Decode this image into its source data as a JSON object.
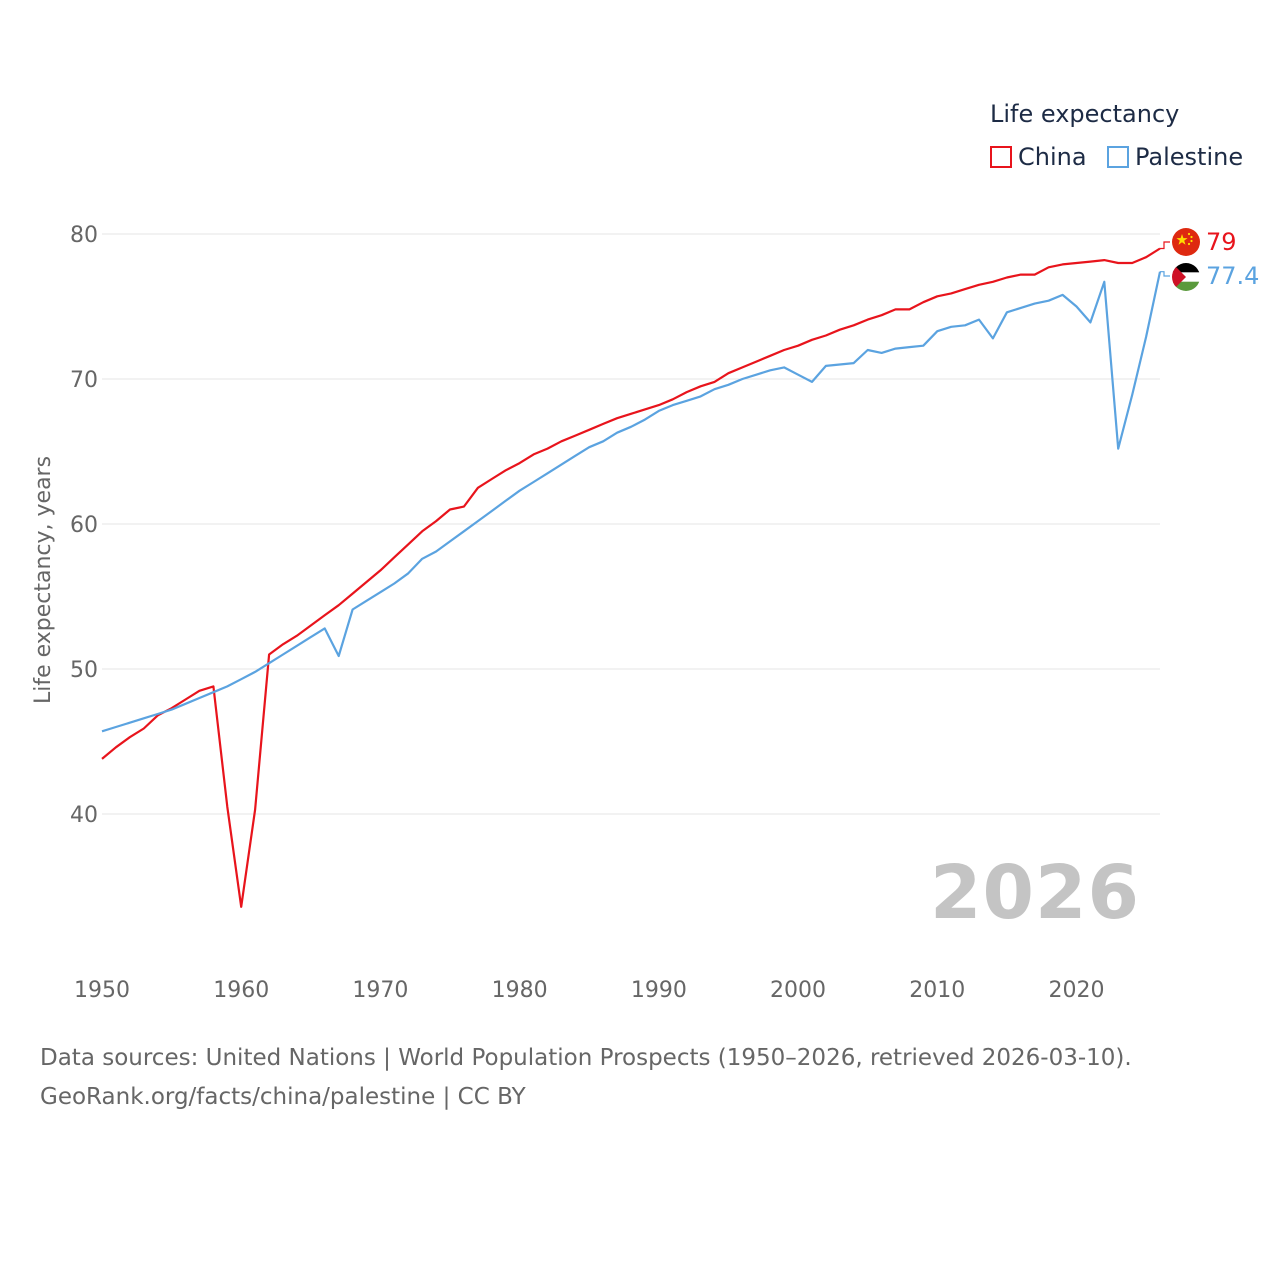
{
  "legend": {
    "title": "Life expectancy",
    "items": [
      {
        "name": "China",
        "color": "#e8141c"
      },
      {
        "name": "Palestine",
        "color": "#5ba3e0"
      }
    ]
  },
  "watermark_year": "2026",
  "source": {
    "line1": "Data sources: United Nations | World Population Prospects (1950–2026, retrieved 2026-03-10).",
    "line2": "GeoRank.org/facts/china/palestine | CC BY"
  },
  "chart_data": {
    "type": "line",
    "title": "Life expectancy",
    "xlabel": "",
    "ylabel": "Life expectancy, years",
    "xlim": [
      1950,
      2026
    ],
    "ylim": [
      32,
      83
    ],
    "x_ticks": [
      1950,
      1960,
      1970,
      1980,
      1990,
      2000,
      2010,
      2020
    ],
    "y_ticks": [
      40,
      50,
      60,
      70,
      80
    ],
    "grid": true,
    "legend_position": "top-right",
    "x": [
      1950,
      1951,
      1952,
      1953,
      1954,
      1955,
      1956,
      1957,
      1958,
      1959,
      1960,
      1961,
      1962,
      1963,
      1964,
      1965,
      1966,
      1967,
      1968,
      1969,
      1970,
      1971,
      1972,
      1973,
      1974,
      1975,
      1976,
      1977,
      1978,
      1979,
      1980,
      1981,
      1982,
      1983,
      1984,
      1985,
      1986,
      1987,
      1988,
      1989,
      1990,
      1991,
      1992,
      1993,
      1994,
      1995,
      1996,
      1997,
      1998,
      1999,
      2000,
      2001,
      2002,
      2003,
      2004,
      2005,
      2006,
      2007,
      2008,
      2009,
      2010,
      2011,
      2012,
      2013,
      2014,
      2015,
      2016,
      2017,
      2018,
      2019,
      2020,
      2021,
      2022,
      2023,
      2024,
      2025,
      2026
    ],
    "series": [
      {
        "name": "China",
        "color": "#e8141c",
        "end_label": "79",
        "values": [
          43.8,
          44.6,
          45.3,
          45.9,
          46.8,
          47.3,
          47.9,
          48.5,
          48.8,
          40.5,
          33.6,
          40.3,
          51.0,
          51.7,
          52.3,
          53.0,
          53.7,
          54.4,
          55.2,
          56.0,
          56.8,
          57.7,
          58.6,
          59.5,
          60.2,
          61.0,
          61.2,
          62.5,
          63.1,
          63.7,
          64.2,
          64.8,
          65.2,
          65.7,
          66.1,
          66.5,
          66.9,
          67.3,
          67.6,
          67.9,
          68.2,
          68.6,
          69.1,
          69.5,
          69.8,
          70.4,
          70.8,
          71.2,
          71.6,
          72.0,
          72.3,
          72.7,
          73.0,
          73.4,
          73.7,
          74.1,
          74.4,
          74.8,
          74.8,
          75.3,
          75.7,
          75.9,
          76.2,
          76.5,
          76.7,
          77.0,
          77.2,
          77.2,
          77.7,
          77.9,
          78.0,
          78.1,
          78.2,
          78.0,
          78.0,
          78.4,
          79.0
        ]
      },
      {
        "name": "Palestine",
        "color": "#5ba3e0",
        "end_label": "77.4",
        "values": [
          45.7,
          46.0,
          46.3,
          46.6,
          46.9,
          47.2,
          47.6,
          48.0,
          48.4,
          48.8,
          49.3,
          49.8,
          50.4,
          51.0,
          51.6,
          52.2,
          52.8,
          50.9,
          54.1,
          54.7,
          55.3,
          55.9,
          56.6,
          57.6,
          58.1,
          58.8,
          59.5,
          60.2,
          60.9,
          61.6,
          62.3,
          62.9,
          63.5,
          64.1,
          64.7,
          65.3,
          65.7,
          66.3,
          66.7,
          67.2,
          67.8,
          68.2,
          68.5,
          68.8,
          69.3,
          69.6,
          70.0,
          70.3,
          70.6,
          70.8,
          70.3,
          69.8,
          70.9,
          71.0,
          71.1,
          72.0,
          71.8,
          72.1,
          72.2,
          72.3,
          73.3,
          73.6,
          73.7,
          74.1,
          72.8,
          74.6,
          74.9,
          75.2,
          75.4,
          75.8,
          75.0,
          73.9,
          76.7,
          65.2,
          68.9,
          72.9,
          77.4
        ]
      }
    ]
  }
}
